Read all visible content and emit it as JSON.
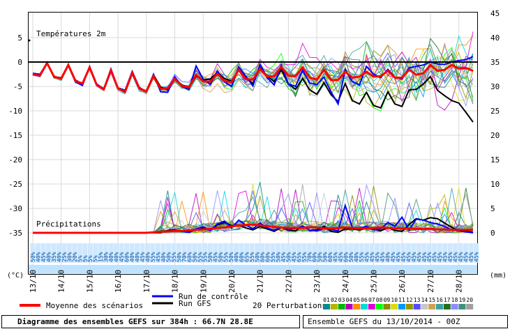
{
  "chart_data": {
    "type": "line",
    "title": "Diagramme des ensembles GEFS sur 384h : 66.7N 28.8E",
    "subtitle": "Ensemble GEFS du 13/10/2014 - 00Z",
    "temp_label": "Températures 2m",
    "precip_label": "Précipitations",
    "left_unit": "(°C)",
    "right_unit": "(mm)",
    "left_axis": {
      "ylim": [
        -37,
        9
      ],
      "ticks": [
        5,
        0,
        -5,
        -10,
        -15,
        -20,
        -25,
        -30,
        -35
      ]
    },
    "right_axis": {
      "ticks": [
        45,
        40,
        35,
        30,
        25,
        20,
        15,
        10,
        5,
        0
      ]
    },
    "x_dates": [
      "13/10",
      "14/10",
      "15/10",
      "16/10",
      "17/10",
      "18/10",
      "19/10",
      "20/10",
      "21/10",
      "22/10",
      "23/10",
      "24/10",
      "25/10",
      "26/10",
      "27/10",
      "28/10"
    ],
    "prob_labels": [
      "50%",
      "40%",
      "45%",
      "40%",
      "35%",
      "40%",
      "25%",
      "30%",
      "20%",
      "5%",
      "5%",
      "5%",
      "5%",
      "15%",
      "30%",
      "40%",
      "40%",
      "45%",
      "60%",
      "40%",
      "40%",
      "45%",
      "40%",
      "55%",
      "45%",
      "40%",
      "50%",
      "55%",
      "50%",
      "70%",
      "60%",
      "50%",
      "55%",
      "55%",
      "50%",
      "45%",
      "50%",
      "55%",
      "50%",
      "40%",
      "60%",
      "65%",
      "55%",
      "50%",
      "60%",
      "60%",
      "55%",
      "50%",
      "45%",
      "50%",
      "45%",
      "65%",
      "55%",
      "70%",
      "60%",
      "50%",
      "50%",
      "60%",
      "45%",
      "45%",
      "60%",
      "50%",
      "40%",
      "55%",
      "45%",
      "45%",
      "45%",
      "45%",
      "40%",
      "45%",
      "45%",
      "45%",
      "45%",
      "45%",
      "45%",
      "45%",
      "45%",
      "45%",
      "45%",
      "45%",
      "45%",
      "45%",
      "45%",
      "45%",
      "45%",
      "45%"
    ],
    "temp_series": [
      {
        "name": "Moyenne des scénarios",
        "color": "#ff0000",
        "values": [
          -2.5,
          -2.8,
          -0.2,
          -3.0,
          -3.4,
          -0.6,
          -3.9,
          -4.4,
          -1.1,
          -4.7,
          -5.6,
          -1.7,
          -5.4,
          -6.1,
          -2.2,
          -5.4,
          -6.0,
          -2.9,
          -5.5,
          -5.4,
          -3.4,
          -4.9,
          -5.2,
          -2.6,
          -4.0,
          -4.0,
          -2.4,
          -3.9,
          -4.1,
          -1.6,
          -3.5,
          -3.6,
          -1.4,
          -3.0,
          -2.9,
          -1.0,
          -2.8,
          -2.9,
          -1.1,
          -3.2,
          -3.6,
          -1.6,
          -3.7,
          -3.7,
          -2.0,
          -3.2,
          -3.0,
          -2.0,
          -3.0,
          -2.9,
          -1.8,
          -3.2,
          -3.2,
          -1.6,
          -2.6,
          -2.3,
          -0.6,
          -1.8,
          -1.6,
          -0.6,
          -1.3,
          -1.2,
          -1.8
        ]
      },
      {
        "name": "Run de contrôle",
        "color": "#0000ff",
        "values": [
          -2.3,
          -2.5,
          -0.2,
          -2.9,
          -3.5,
          -0.5,
          -4.1,
          -4.8,
          -0.9,
          -4.5,
          -5.5,
          -1.4,
          -5.3,
          -5.8,
          -1.9,
          -5.2,
          -6.1,
          -2.5,
          -6.1,
          -6.2,
          -3.0,
          -5.0,
          -5.6,
          -0.8,
          -3.5,
          -4.6,
          -1.8,
          -4.1,
          -5.0,
          -1.0,
          -2.9,
          -4.9,
          -0.5,
          -3.2,
          -4.7,
          -0.7,
          -4.5,
          -5.0,
          -1.7,
          -4.3,
          -4.6,
          -3.1,
          -6.1,
          -8.6,
          -1.6,
          -4.0,
          -4.7,
          -0.9,
          -2.5,
          -3.2,
          -1.5,
          -3.1,
          -3.5,
          -1.2,
          -0.9,
          -0.6,
          0.0,
          -0.4,
          -0.5,
          0.0,
          0.3,
          0.5,
          1.1
        ]
      },
      {
        "name": "Run GFS",
        "color": "#000000",
        "values": [
          -2.6,
          -2.8,
          -0.1,
          -3.1,
          -3.3,
          -0.5,
          -3.7,
          -4.5,
          -1.1,
          -4.6,
          -5.6,
          -1.6,
          -5.3,
          -5.8,
          -2.3,
          -5.5,
          -5.9,
          -2.6,
          -5.1,
          -5.7,
          -3.5,
          -4.7,
          -5.2,
          -2.9,
          -3.7,
          -3.5,
          -2.1,
          -3.4,
          -3.9,
          -1.6,
          -3.2,
          -4.4,
          -1.2,
          -2.9,
          -4.0,
          -1.6,
          -4.5,
          -5.6,
          -3.4,
          -5.7,
          -6.6,
          -4.2,
          -6.7,
          -8.1,
          -4.4,
          -7.9,
          -8.6,
          -6.2,
          -8.9,
          -9.4,
          -6.1,
          -8.6,
          -9.1,
          -5.7,
          -5.6,
          -4.5,
          -3.0,
          -5.8,
          -6.9,
          -7.9,
          -8.4,
          -10.3,
          -12.3
        ]
      }
    ],
    "precip_series": [
      {
        "name": "Moyenne des scénarios",
        "color": "#ff0000",
        "values": [
          0.0,
          0.0,
          0.0,
          0.0,
          0.0,
          0.0,
          0.0,
          0.0,
          0.0,
          0.0,
          0.0,
          0.0,
          0.0,
          0.0,
          0.0,
          0.0,
          0.0,
          0.1,
          0.2,
          0.3,
          0.4,
          0.4,
          0.5,
          0.6,
          0.7,
          0.8,
          1.0,
          1.1,
          1.3,
          1.5,
          1.6,
          1.7,
          1.5,
          1.4,
          1.2,
          1.1,
          1.0,
          1.0,
          1.0,
          1.1,
          1.1,
          0.9,
          0.9,
          1.0,
          1.1,
          1.0,
          0.9,
          0.9,
          1.0,
          1.1,
          1.0,
          0.9,
          0.9,
          0.9,
          0.8,
          0.8,
          0.8,
          0.7,
          0.7,
          0.6,
          0.6,
          0.6,
          0.6
        ]
      },
      {
        "name": "Run de contrôle",
        "color": "#0000ff",
        "values": [
          0.0,
          0.0,
          0.0,
          0.0,
          0.0,
          0.0,
          0.0,
          0.0,
          0.0,
          0.0,
          0.0,
          0.0,
          0.0,
          0.0,
          0.0,
          0.0,
          0.0,
          0.0,
          0.2,
          0.3,
          0.5,
          0.3,
          0.1,
          0.8,
          1.2,
          0.5,
          1.8,
          2.4,
          1.0,
          2.6,
          1.6,
          0.8,
          2.0,
          1.0,
          0.5,
          1.2,
          0.6,
          0.9,
          1.4,
          0.5,
          0.4,
          0.9,
          0.7,
          0.4,
          5.6,
          1.1,
          1.0,
          1.3,
          0.6,
          0.8,
          2.1,
          1.3,
          3.2,
          0.6,
          2.8,
          2.6,
          2.1,
          1.8,
          1.3,
          0.6,
          0.4,
          0.2,
          0.0
        ]
      },
      {
        "name": "Run GFS",
        "color": "#000000",
        "values": [
          0.0,
          0.0,
          0.0,
          0.0,
          0.0,
          0.0,
          0.0,
          0.0,
          0.0,
          0.0,
          0.0,
          0.0,
          0.0,
          0.0,
          0.0,
          0.0,
          0.0,
          0.0,
          0.0,
          0.5,
          0.6,
          0.3,
          0.1,
          0.7,
          1.0,
          0.6,
          1.6,
          2.1,
          1.5,
          1.6,
          1.0,
          0.6,
          1.3,
          0.8,
          0.3,
          1.1,
          0.5,
          0.4,
          1.4,
          0.5,
          0.6,
          1.3,
          0.3,
          0.1,
          0.8,
          0.8,
          0.6,
          0.9,
          0.7,
          0.4,
          1.1,
          0.5,
          0.3,
          1.7,
          2.9,
          2.6,
          3.1,
          2.9,
          2.0,
          1.1,
          0.5,
          0.3,
          0.1
        ]
      }
    ],
    "perturbation_colors": [
      "#008c8c",
      "#b4b400",
      "#00b400",
      "#b400b4",
      "#ff8c00",
      "#00dcdc",
      "#dc00dc",
      "#00ff00",
      "#8c8c00",
      "#dcdc00",
      "#0096ff",
      "#969600",
      "#5050ff",
      "#c8c8c8",
      "#d2a050",
      "#40a0a0",
      "#207020",
      "#8c8cff",
      "#409080",
      "#a0a0a0"
    ],
    "legend": {
      "mean": "Moyenne des scénarios",
      "control": "Run de contrôle",
      "gfs": "Run GFS",
      "perturbations": "20 Perturbations",
      "perturbation_numbers": [
        "01",
        "02",
        "03",
        "04",
        "05",
        "06",
        "07",
        "08",
        "09",
        "10",
        "11",
        "12",
        "13",
        "14",
        "15",
        "16",
        "17",
        "18",
        "19",
        "20"
      ]
    }
  }
}
